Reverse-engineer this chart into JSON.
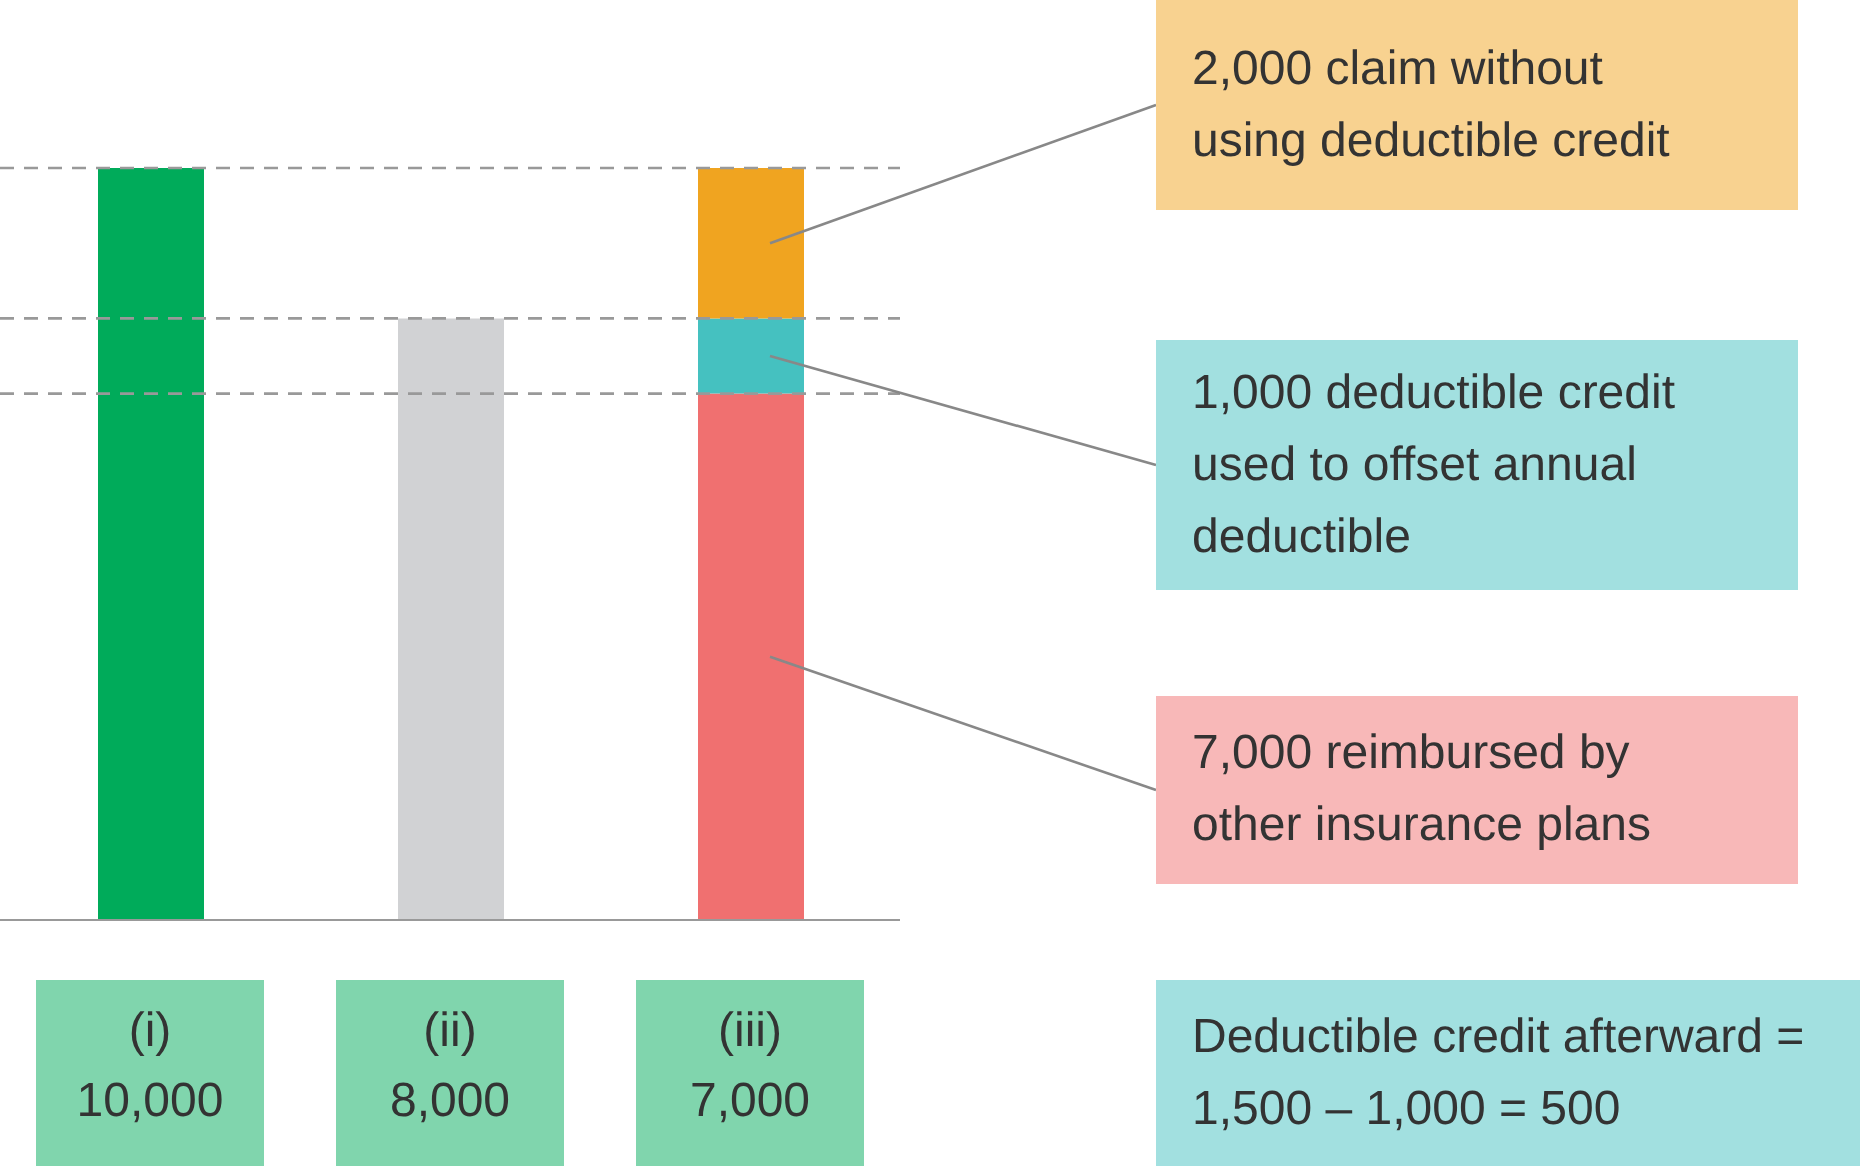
{
  "chart_data": {
    "type": "bar",
    "stacked": true,
    "categories": [
      "(i)",
      "(ii)",
      "(iii)"
    ],
    "series": [
      {
        "colors": [
          "#00ab5a",
          "#d1d2d4",
          "#f07070"
        ],
        "values": [
          10000,
          8000,
          7000
        ],
        "value_labels": [
          "10,000",
          "8,000",
          "7,000"
        ]
      },
      {
        "color": "#45c1c0",
        "values": [
          null,
          null,
          1000
        ]
      },
      {
        "color": "#f0a420",
        "values": [
          null,
          null,
          2000
        ]
      }
    ],
    "ylim": [
      0,
      10000
    ],
    "ref_lines": [
      {
        "axis": "y",
        "value": 10000,
        "color": "#999999",
        "line_style": "dashed"
      },
      {
        "axis": "y",
        "value": 8000,
        "color": "#999999",
        "line_style": "dashed"
      },
      {
        "axis": "y",
        "value": 7000,
        "color": "#999999",
        "line_style": "dashed"
      }
    ],
    "annotations": [
      "2,000 claim without using deductible credit",
      "1,000 deductible credit used to offset annual deductible",
      "7,000 reimbursed by other insurance plans",
      "Deductible credit afterward = 1,500 – 1,000 = 500"
    ],
    "tick_labels": "x"
  }
}
